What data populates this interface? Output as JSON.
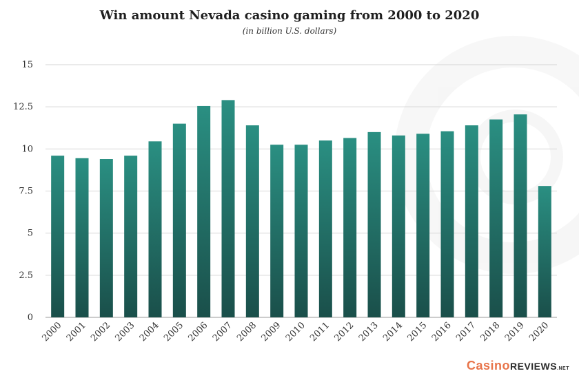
{
  "chart_data": {
    "type": "bar",
    "title": "Win amount Nevada casino gaming from 2000 to 2020",
    "subtitle": "(in billion U.S. dollars)",
    "categories": [
      "2000",
      "2001",
      "2002",
      "2003",
      "2004",
      "2005",
      "2006",
      "2007",
      "2008",
      "2009",
      "2010",
      "2011",
      "2012",
      "2013",
      "2014",
      "2015",
      "2016",
      "2017",
      "2018",
      "2019",
      "2020"
    ],
    "values": [
      9.6,
      9.45,
      9.4,
      9.6,
      10.45,
      11.5,
      12.55,
      12.9,
      11.4,
      10.25,
      10.25,
      10.5,
      10.65,
      11.0,
      10.8,
      10.9,
      11.05,
      11.4,
      11.75,
      12.05,
      7.8
    ],
    "ylim": [
      0,
      15
    ],
    "yticks": [
      0,
      2.5,
      5,
      7.5,
      10,
      12.5,
      15
    ],
    "ytick_labels": [
      "0",
      "2.5",
      "5",
      "7.5",
      "10",
      "12.5",
      "15"
    ],
    "grid": true,
    "bar_color_top": "#2a8f82",
    "bar_color_bottom": "#1a4f4a",
    "xlabel": "",
    "ylabel": ""
  },
  "brand": {
    "part1": "Casino",
    "part2": "REVIEWS",
    "part3": ".NET"
  }
}
